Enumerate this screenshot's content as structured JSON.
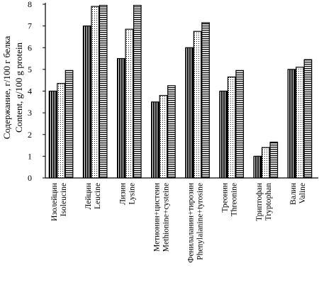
{
  "chart_data": {
    "type": "bar",
    "title": "",
    "ylabel": [
      "Содержание, г/100 г белка",
      "Content, g/100 g protein"
    ],
    "ylim": [
      0,
      8
    ],
    "yticks": [
      0,
      1,
      2,
      3,
      4,
      5,
      6,
      7,
      8
    ],
    "grid": false,
    "legend": "none",
    "categories": [
      [
        "Изолейцин",
        "Isoleucine"
      ],
      [
        "Лейцин",
        "Leucine"
      ],
      [
        "Лизин",
        "Lysine"
      ],
      [
        "Метионин+цистеин",
        "Methionine+cysteine"
      ],
      [
        "Фенилаланин+тирозин",
        "Phenylalanine+tyrosine"
      ],
      [
        "Треонин",
        "Threonine"
      ],
      [
        "Триптофан",
        "Tryptophan"
      ],
      [
        "Валин",
        "Valine"
      ]
    ],
    "series": [
      {
        "pattern": "vertical-dense",
        "values": [
          4.0,
          7.0,
          5.5,
          3.5,
          6.0,
          4.0,
          1.0,
          5.0
        ]
      },
      {
        "pattern": "dotted",
        "values": [
          4.35,
          7.9,
          6.85,
          3.8,
          6.75,
          4.65,
          1.4,
          5.1
        ]
      },
      {
        "pattern": "horizontal-stripes",
        "values": [
          4.95,
          7.95,
          7.95,
          4.25,
          7.15,
          4.95,
          1.65,
          5.45
        ]
      }
    ],
    "colors": {
      "ink": "#000000",
      "background": "#ffffff"
    }
  }
}
